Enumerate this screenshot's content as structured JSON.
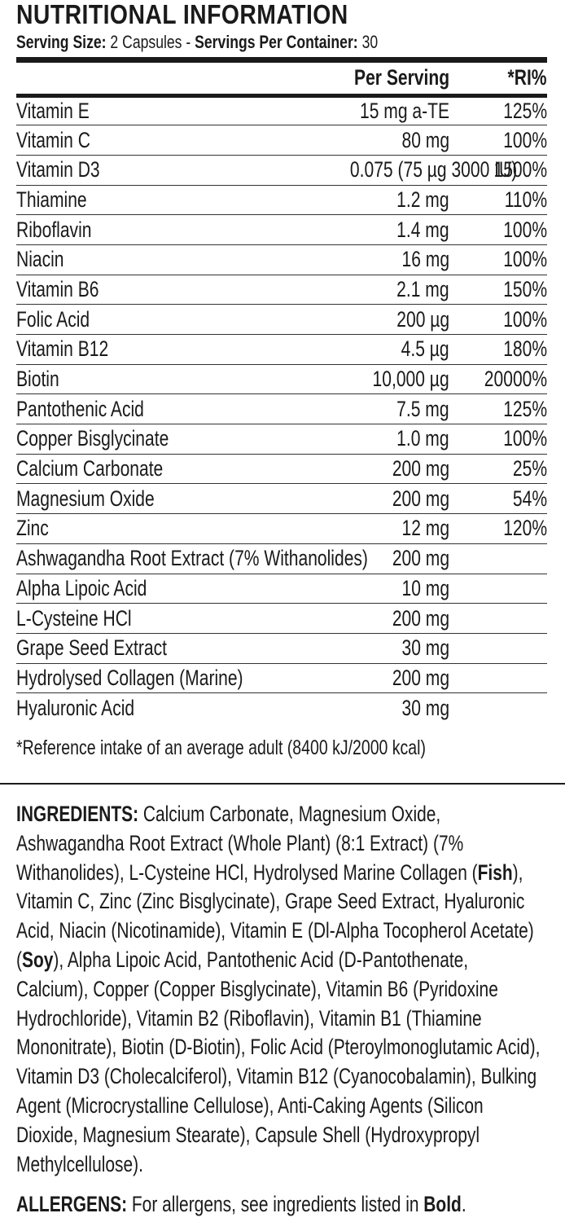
{
  "title": "NUTRITIONAL INFORMATION",
  "serving": {
    "size_label": "Serving Size:",
    "size_value": "2 Capsules",
    "separator": "-",
    "per_container_label": "Servings Per Container:",
    "per_container_value": "30"
  },
  "table": {
    "headers": [
      "",
      "Per Serving",
      "*RI%"
    ],
    "rows": [
      {
        "name": "Vitamin E",
        "amount": "15 mg a-TE",
        "ri": "125%"
      },
      {
        "name": "Vitamin C",
        "amount": "80 mg",
        "ri": "100%"
      },
      {
        "name": "Vitamin D3",
        "amount": "0.075 (75 µg 3000 IU)",
        "ri": "1500%"
      },
      {
        "name": "Thiamine",
        "amount": "1.2 mg",
        "ri": "110%"
      },
      {
        "name": "Riboflavin",
        "amount": "1.4 mg",
        "ri": "100%"
      },
      {
        "name": "Niacin",
        "amount": "16 mg",
        "ri": "100%"
      },
      {
        "name": "Vitamin B6",
        "amount": "2.1 mg",
        "ri": "150%"
      },
      {
        "name": "Folic Acid",
        "amount": "200 µg",
        "ri": "100%"
      },
      {
        "name": "Vitamin B12",
        "amount": "4.5 µg",
        "ri": "180%"
      },
      {
        "name": "Biotin",
        "amount": "10,000 µg",
        "ri": "20000%"
      },
      {
        "name": "Pantothenic Acid",
        "amount": "7.5 mg",
        "ri": "125%"
      },
      {
        "name": "Copper Bisglycinate",
        "amount": "1.0 mg",
        "ri": "100%"
      },
      {
        "name": "Calcium Carbonate",
        "amount": "200 mg",
        "ri": "25%"
      },
      {
        "name": "Magnesium Oxide",
        "amount": "200 mg",
        "ri": "54%"
      },
      {
        "name": "Zinc",
        "amount": "12 mg",
        "ri": "120%"
      },
      {
        "name": "Ashwagandha Root Extract (7% Withanolides)",
        "amount": "200 mg",
        "ri": ""
      },
      {
        "name": "Alpha Lipoic Acid",
        "amount": "10 mg",
        "ri": ""
      },
      {
        "name": "L-Cysteine HCl",
        "amount": "200 mg",
        "ri": ""
      },
      {
        "name": "Grape Seed Extract",
        "amount": "30 mg",
        "ri": ""
      },
      {
        "name": "Hydrolysed Collagen (Marine)",
        "amount": "200 mg",
        "ri": ""
      },
      {
        "name": "Hyaluronic Acid",
        "amount": "30 mg",
        "ri": ""
      }
    ]
  },
  "footnote": "*Reference intake of an average adult (8400 kJ/2000 kcal)",
  "ingredients": {
    "label": "INGREDIENTS:",
    "text_1": " Calcium Carbonate, Magnesium Oxide, Ashwagandha Root Extract (Whole Plant) (8:1 Extract) (7% Withanolides), L-Cysteine HCl, Hydrolysed Marine Collagen (",
    "bold_1": "Fish",
    "text_2": "), Vitamin C, Zinc (Zinc Bisglycinate), Grape Seed Extract, Hyaluronic Acid, Niacin (Nicotinamide), Vitamin E (Dl-Alpha Tocopherol Acetate) (",
    "bold_2": "Soy",
    "text_3": "), Alpha Lipoic Acid, Pantothenic Acid (D-Pantothenate, Calcium), Copper (Copper Bisglycinate), Vitamin B6  (Pyridoxine Hydrochloride), Vitamin B2 (Riboflavin), Vitamin B1 (Thiamine Mononitrate), Biotin (D-Biotin), Folic Acid (Pteroylmonoglutamic Acid), Vitamin D3 (Cholecalciferol), Vitamin B12 (Cyanocobalamin), Bulking Agent (Microcrystalline Cellulose), Anti-Caking Agents (Silicon Dioxide, Magnesium Stearate), Capsule Shell (Hydroxypropyl Methylcellulose)."
  },
  "allergens": {
    "label": "ALLERGENS:",
    "text": " For allergens, see ingredients listed in ",
    "bold": "Bold",
    "end": "."
  }
}
